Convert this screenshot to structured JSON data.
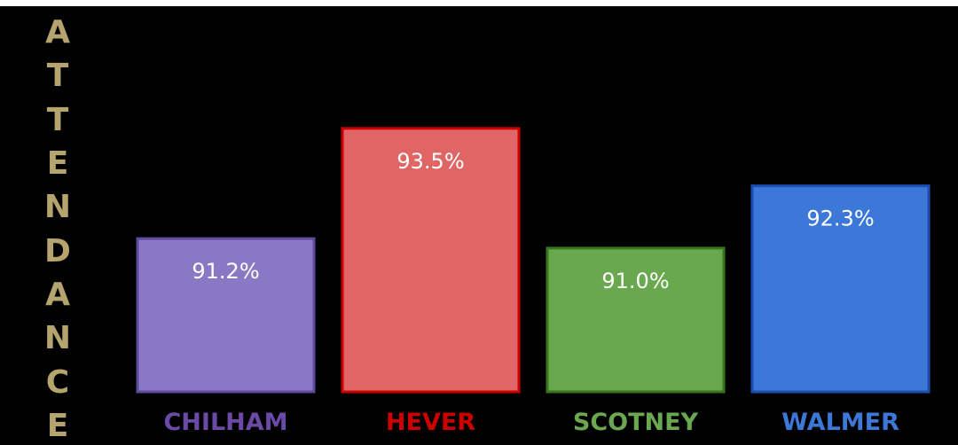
{
  "chart_data": {
    "type": "bar",
    "ylabel": "ATTENDANCE",
    "categories": [
      "CHILHAM",
      "HEVER",
      "SCOTNEY",
      "WALMER"
    ],
    "values": [
      91.2,
      93.5,
      91.0,
      92.3
    ],
    "value_labels": [
      "91.2%",
      "93.5%",
      "91.0%",
      "92.3%"
    ],
    "ylim": [
      88,
      94.2
    ],
    "grid": false,
    "legend": "none",
    "colors": {
      "background": "#000000",
      "ylabel": "#b5a46e",
      "value_label": "#ffffff",
      "bars": [
        {
          "fill": "#8b78c4",
          "stroke": "#5c4a9a",
          "label": "#6a4aa6"
        },
        {
          "fill": "#e06666",
          "stroke": "#cc0000",
          "label": "#cc0000"
        },
        {
          "fill": "#6aa84f",
          "stroke": "#38761d",
          "label": "#6aa84f"
        },
        {
          "fill": "#3c78d8",
          "stroke": "#1c4fb0",
          "label": "#3c78d8"
        }
      ]
    }
  }
}
